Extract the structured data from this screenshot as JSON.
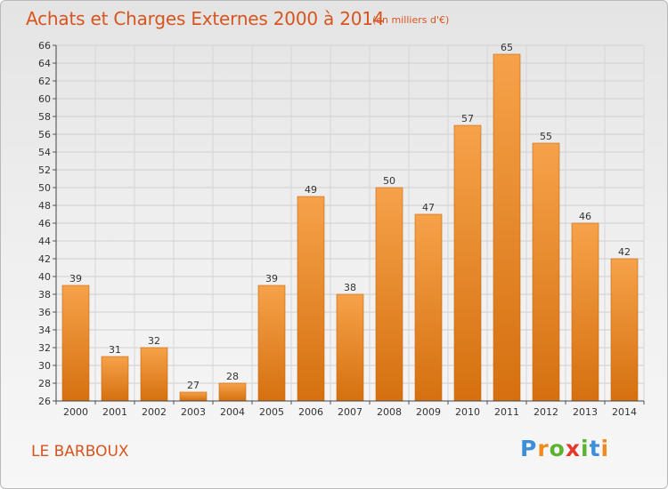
{
  "header": {
    "title": "Achats et Charges Externes 2000 à 2014",
    "subtitle": "(en milliers d'€)"
  },
  "footer": {
    "commune": "LE BARBOUX",
    "logo_letters": [
      "P",
      "r",
      "o",
      "x",
      "i",
      "t",
      "i"
    ],
    "logo_colors": [
      "#3d8fd9",
      "#f08a1e",
      "#5cb332",
      "#e23a2e",
      "#5cb332",
      "#3d8fd9",
      "#f08a1e"
    ]
  },
  "chart_data": {
    "type": "bar",
    "title": "Achats et Charges Externes 2000 à 2014",
    "subtitle": "(en milliers d'€)",
    "xlabel": "",
    "ylabel": "",
    "categories": [
      "2000",
      "2001",
      "2002",
      "2003",
      "2004",
      "2005",
      "2006",
      "2007",
      "2008",
      "2009",
      "2010",
      "2011",
      "2012",
      "2013",
      "2014"
    ],
    "values": [
      39,
      31,
      32,
      27,
      28,
      39,
      49,
      38,
      50,
      47,
      57,
      65,
      55,
      46,
      42
    ],
    "ylim": [
      26,
      66
    ],
    "yticks": [
      26,
      28,
      30,
      32,
      34,
      36,
      38,
      40,
      42,
      44,
      46,
      48,
      50,
      52,
      54,
      56,
      58,
      60,
      62,
      64,
      66
    ],
    "grid": true,
    "legend": "none",
    "bar_color_top": "#f6a24a",
    "bar_color_bottom": "#d5700f"
  }
}
